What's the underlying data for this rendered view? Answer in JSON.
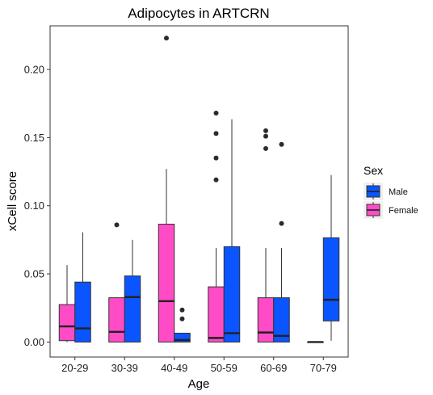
{
  "chart_data": {
    "type": "boxplot",
    "title": "Adipocytes in ARTCRN",
    "xlabel": "Age",
    "ylabel": "xCell score",
    "ylim": [
      -0.011,
      0.232
    ],
    "yticks": [
      "0.00",
      "0.05",
      "0.10",
      "0.15",
      "0.20"
    ],
    "categories": [
      "20-29",
      "30-39",
      "40-49",
      "50-59",
      "60-69",
      "70-79"
    ],
    "grid": false,
    "legend": {
      "title": "Sex",
      "placement": "right",
      "entries": [
        {
          "name": "Male",
          "color": "#0a55ff"
        },
        {
          "name": "Female",
          "color": "#ff4bc6"
        }
      ]
    },
    "series": [
      {
        "name": "Female",
        "color": "#ff4bc6",
        "boxes": [
          {
            "category": "20-29",
            "min": 0.0,
            "q1": 0.001,
            "median": 0.0115,
            "q3": 0.0275,
            "max": 0.0565,
            "outliers": []
          },
          {
            "category": "30-39",
            "min": 0.0,
            "q1": 0.0,
            "median": 0.0075,
            "q3": 0.0325,
            "max": 0.0325,
            "outliers": [
              0.086
            ]
          },
          {
            "category": "40-49",
            "min": 0.0,
            "q1": 0.0,
            "median": 0.03,
            "q3": 0.0865,
            "max": 0.127,
            "outliers": [
              0.223
            ]
          },
          {
            "category": "50-59",
            "min": 0.0,
            "q1": 0.0,
            "median": 0.003,
            "q3": 0.0405,
            "max": 0.069,
            "outliers": [
              0.119,
              0.135,
              0.153,
              0.168
            ]
          },
          {
            "category": "60-69",
            "min": 0.0,
            "q1": 0.0,
            "median": 0.007,
            "q3": 0.0325,
            "max": 0.069,
            "outliers": [
              0.142,
              0.151,
              0.155
            ]
          },
          {
            "category": "70-79",
            "min": 0.0,
            "q1": 0.0,
            "median": 0.0,
            "q3": 0.0,
            "max": 0.0,
            "outliers": []
          }
        ]
      },
      {
        "name": "Male",
        "color": "#0a55ff",
        "boxes": [
          {
            "category": "20-29",
            "min": 0.0,
            "q1": 0.0,
            "median": 0.01,
            "q3": 0.044,
            "max": 0.0805,
            "outliers": []
          },
          {
            "category": "30-39",
            "min": 0.0,
            "q1": 0.0,
            "median": 0.033,
            "q3": 0.0485,
            "max": 0.075,
            "outliers": []
          },
          {
            "category": "40-49",
            "min": 0.0,
            "q1": 0.0,
            "median": 0.0015,
            "q3": 0.0065,
            "max": 0.0065,
            "outliers": [
              0.017,
              0.0235
            ]
          },
          {
            "category": "50-59",
            "min": 0.0,
            "q1": 0.0,
            "median": 0.0065,
            "q3": 0.07,
            "max": 0.1635,
            "outliers": []
          },
          {
            "category": "60-69",
            "min": 0.0,
            "q1": 0.0,
            "median": 0.0045,
            "q3": 0.0325,
            "max": 0.069,
            "outliers": [
              0.087,
              0.145
            ]
          },
          {
            "category": "70-79",
            "min": 0.001,
            "q1": 0.0155,
            "median": 0.031,
            "q3": 0.0765,
            "max": 0.1225,
            "outliers": []
          }
        ]
      }
    ]
  }
}
